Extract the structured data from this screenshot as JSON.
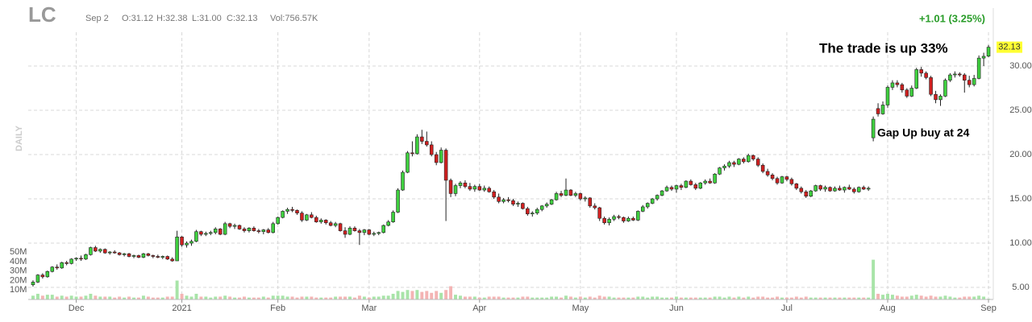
{
  "header": {
    "symbol": "LC",
    "date": "Sep 2",
    "open": "O:31.12",
    "high": "H:32.38",
    "low": "L:31.00",
    "close": "C:32.13",
    "volume": "Vol:756.57K",
    "change": "+1.01 (3.25%)",
    "period": "DAILY"
  },
  "chart_data": {
    "type": "candlestick",
    "annotations": [
      "The trade is up 33%",
      "Gap Up buy at 24"
    ],
    "up_color": "#3fcf3f",
    "down_color": "#d02020",
    "up_volume_color": "#a8e4a8",
    "down_volume_color": "#f4b4b4",
    "grid": true,
    "xlim": [
      -1,
      200
    ],
    "xticks": [
      {
        "value": 9,
        "label": "Dec"
      },
      {
        "value": 31,
        "label": "2021"
      },
      {
        "value": 51,
        "label": "Feb"
      },
      {
        "value": 70,
        "label": "Mar"
      },
      {
        "value": 93,
        "label": "Apr"
      },
      {
        "value": 114,
        "label": "May"
      },
      {
        "value": 134,
        "label": "Jun"
      },
      {
        "value": 157,
        "label": "Jul"
      },
      {
        "value": 178,
        "label": "Aug"
      },
      {
        "value": 199,
        "label": "Sep"
      }
    ],
    "ylim": [
      3.64,
      36.55
    ],
    "yticks": [
      {
        "value": 5,
        "label": "5.00"
      },
      {
        "value": 10,
        "label": "10.00"
      },
      {
        "value": 15,
        "label": "15.00"
      },
      {
        "value": 20,
        "label": "20.00"
      },
      {
        "value": 25,
        "label": "25.00"
      },
      {
        "value": 30,
        "label": "30.00"
      }
    ],
    "y2lim": [
      0,
      308
    ],
    "y2ticks": [
      {
        "value": 10,
        "label": "10M"
      },
      {
        "value": 20,
        "label": "20M"
      },
      {
        "value": 30,
        "label": "30M"
      },
      {
        "value": 40,
        "label": "40M"
      },
      {
        "value": 50,
        "label": "50M"
      }
    ],
    "ohlc": [
      [
        5.3,
        5.8,
        5.1,
        5.6,
        4
      ],
      [
        5.6,
        6.5,
        5.5,
        6.4,
        6
      ],
      [
        6.4,
        6.6,
        6.0,
        6.2,
        4
      ],
      [
        6.2,
        6.9,
        6.1,
        6.8,
        5
      ],
      [
        6.8,
        7.4,
        6.7,
        7.3,
        5
      ],
      [
        7.3,
        7.6,
        7.0,
        7.2,
        3
      ],
      [
        7.2,
        7.9,
        7.1,
        7.8,
        4
      ],
      [
        7.8,
        8.0,
        7.5,
        7.7,
        3
      ],
      [
        7.7,
        8.3,
        7.6,
        8.2,
        4
      ],
      [
        8.2,
        8.4,
        8.0,
        8.3,
        3
      ],
      [
        8.3,
        8.6,
        8.0,
        8.2,
        3
      ],
      [
        8.2,
        8.8,
        8.1,
        8.7,
        4
      ],
      [
        8.7,
        9.6,
        8.6,
        9.5,
        6
      ],
      [
        9.5,
        9.7,
        9.0,
        9.1,
        4
      ],
      [
        9.1,
        9.4,
        8.9,
        9.3,
        3
      ],
      [
        9.3,
        9.4,
        8.8,
        8.9,
        3
      ],
      [
        8.9,
        9.1,
        8.7,
        9.0,
        3
      ],
      [
        9.0,
        9.2,
        8.8,
        8.9,
        2
      ],
      [
        8.9,
        9.0,
        8.6,
        8.7,
        3
      ],
      [
        8.7,
        8.9,
        8.5,
        8.8,
        2
      ],
      [
        8.8,
        8.9,
        8.4,
        8.5,
        3
      ],
      [
        8.5,
        8.7,
        8.3,
        8.6,
        2
      ],
      [
        8.6,
        8.7,
        8.3,
        8.4,
        2
      ],
      [
        8.4,
        8.9,
        8.3,
        8.8,
        4
      ],
      [
        8.8,
        8.9,
        8.5,
        8.6,
        3
      ],
      [
        8.6,
        8.7,
        8.3,
        8.5,
        2
      ],
      [
        8.5,
        8.7,
        8.3,
        8.4,
        2
      ],
      [
        8.4,
        8.6,
        8.2,
        8.5,
        2
      ],
      [
        8.5,
        8.6,
        8.1,
        8.2,
        3
      ],
      [
        8.2,
        8.4,
        7.9,
        8.0,
        3
      ],
      [
        8.0,
        11.4,
        8.0,
        10.7,
        20
      ],
      [
        10.7,
        10.8,
        9.6,
        9.8,
        6
      ],
      [
        9.8,
        10.2,
        9.5,
        10.0,
        4
      ],
      [
        10.0,
        10.4,
        9.7,
        10.2,
        3
      ],
      [
        10.2,
        11.5,
        10.1,
        11.3,
        6
      ],
      [
        11.3,
        11.4,
        10.8,
        11.0,
        3
      ],
      [
        11.0,
        11.3,
        10.8,
        11.1,
        3
      ],
      [
        11.1,
        11.4,
        10.9,
        11.2,
        2
      ],
      [
        11.2,
        11.8,
        11.0,
        11.6,
        3
      ],
      [
        11.6,
        11.7,
        10.9,
        11.0,
        3
      ],
      [
        11.0,
        12.4,
        10.9,
        12.2,
        4
      ],
      [
        12.2,
        12.3,
        11.7,
        11.9,
        3
      ],
      [
        11.9,
        12.2,
        11.6,
        12.0,
        2
      ],
      [
        12.0,
        12.1,
        11.5,
        11.6,
        2
      ],
      [
        11.6,
        11.8,
        11.2,
        11.4,
        3
      ],
      [
        11.4,
        11.8,
        11.2,
        11.7,
        2
      ],
      [
        11.7,
        11.9,
        11.3,
        11.4,
        2
      ],
      [
        11.4,
        11.6,
        11.1,
        11.3,
        2
      ],
      [
        11.3,
        11.6,
        11.0,
        11.5,
        3
      ],
      [
        11.5,
        11.7,
        11.1,
        11.2,
        2
      ],
      [
        11.2,
        12.4,
        11.1,
        12.2,
        4
      ],
      [
        12.2,
        13.0,
        12.1,
        12.9,
        4
      ],
      [
        12.9,
        13.7,
        12.8,
        13.6,
        4
      ],
      [
        13.6,
        14.0,
        13.3,
        13.8,
        3
      ],
      [
        13.8,
        14.1,
        13.5,
        13.7,
        3
      ],
      [
        13.7,
        13.8,
        13.2,
        13.4,
        2
      ],
      [
        13.4,
        13.6,
        12.4,
        12.6,
        3
      ],
      [
        12.6,
        13.3,
        12.5,
        13.2,
        3
      ],
      [
        13.2,
        13.5,
        12.8,
        12.9,
        3
      ],
      [
        12.9,
        13.1,
        12.3,
        12.4,
        2
      ],
      [
        12.4,
        12.8,
        12.2,
        12.6,
        2
      ],
      [
        12.6,
        12.7,
        12.1,
        12.3,
        2
      ],
      [
        12.3,
        12.5,
        11.9,
        12.0,
        2
      ],
      [
        12.0,
        12.4,
        11.8,
        12.2,
        3
      ],
      [
        12.2,
        12.3,
        11.3,
        11.4,
        3
      ],
      [
        11.4,
        11.8,
        10.6,
        11.0,
        3
      ],
      [
        11.0,
        11.9,
        10.9,
        11.7,
        3
      ],
      [
        11.7,
        11.9,
        11.3,
        11.4,
        2
      ],
      [
        11.4,
        11.6,
        9.8,
        11.2,
        4
      ],
      [
        11.2,
        11.6,
        10.9,
        11.5,
        3
      ],
      [
        11.5,
        11.6,
        10.9,
        11.0,
        2
      ],
      [
        11.0,
        11.3,
        10.8,
        11.1,
        3
      ],
      [
        11.1,
        11.3,
        10.9,
        11.2,
        3
      ],
      [
        11.2,
        12.1,
        11.1,
        12.0,
        4
      ],
      [
        12.0,
        12.6,
        11.9,
        12.4,
        4
      ],
      [
        12.4,
        13.7,
        12.3,
        13.5,
        6
      ],
      [
        13.5,
        16.2,
        13.4,
        16.0,
        9
      ],
      [
        16.0,
        18.2,
        15.9,
        18.0,
        8
      ],
      [
        18.0,
        20.4,
        17.9,
        20.2,
        10
      ],
      [
        20.2,
        21.5,
        19.8,
        20.1,
        9
      ],
      [
        20.1,
        22.3,
        20.0,
        22.0,
        10
      ],
      [
        22.0,
        22.8,
        21.2,
        21.5,
        8
      ],
      [
        21.5,
        22.6,
        20.9,
        21.1,
        9
      ],
      [
        21.1,
        21.5,
        19.8,
        20.0,
        7
      ],
      [
        20.0,
        20.3,
        18.8,
        19.1,
        9
      ],
      [
        19.1,
        20.8,
        19.0,
        20.5,
        7
      ],
      [
        20.5,
        20.7,
        12.5,
        17.1,
        10
      ],
      [
        17.1,
        17.3,
        15.2,
        15.6,
        14
      ],
      [
        15.6,
        16.7,
        15.3,
        16.5,
        5
      ],
      [
        16.5,
        17.0,
        16.2,
        16.8,
        4
      ],
      [
        16.8,
        17.1,
        16.2,
        16.4,
        3
      ],
      [
        16.4,
        16.8,
        15.9,
        16.1,
        3
      ],
      [
        16.1,
        16.6,
        15.8,
        16.4,
        3
      ],
      [
        16.4,
        16.7,
        15.9,
        16.0,
        2
      ],
      [
        16.0,
        16.5,
        15.8,
        16.2,
        2
      ],
      [
        16.2,
        16.4,
        15.7,
        15.8,
        3
      ],
      [
        15.8,
        16.0,
        15.0,
        15.2,
        3
      ],
      [
        15.2,
        15.6,
        14.5,
        14.7,
        3
      ],
      [
        14.7,
        15.1,
        14.5,
        14.9,
        2
      ],
      [
        14.9,
        15.2,
        14.6,
        14.8,
        2
      ],
      [
        14.8,
        15.0,
        14.2,
        14.4,
        2
      ],
      [
        14.4,
        14.7,
        14.1,
        14.5,
        2
      ],
      [
        14.5,
        14.6,
        13.8,
        13.9,
        3
      ],
      [
        13.9,
        14.1,
        13.1,
        13.3,
        3
      ],
      [
        13.3,
        13.6,
        13.0,
        13.4,
        2
      ],
      [
        13.4,
        14.0,
        13.2,
        13.8,
        2
      ],
      [
        13.8,
        14.3,
        13.6,
        14.2,
        2
      ],
      [
        14.2,
        14.6,
        14.0,
        14.4,
        2
      ],
      [
        14.4,
        15.0,
        14.3,
        14.9,
        3
      ],
      [
        14.9,
        15.8,
        14.8,
        15.6,
        3
      ],
      [
        15.6,
        15.9,
        15.2,
        15.4,
        2
      ],
      [
        15.4,
        17.3,
        15.3,
        16.0,
        4
      ],
      [
        16.0,
        16.1,
        15.3,
        15.4,
        3
      ],
      [
        15.4,
        15.8,
        15.2,
        15.6,
        2
      ],
      [
        15.6,
        15.7,
        14.8,
        15.0,
        3
      ],
      [
        15.0,
        15.3,
        14.7,
        15.1,
        2
      ],
      [
        15.1,
        15.2,
        14.0,
        14.2,
        3
      ],
      [
        14.2,
        14.5,
        13.8,
        14.0,
        2
      ],
      [
        14.0,
        14.1,
        12.5,
        12.8,
        4
      ],
      [
        12.8,
        13.0,
        12.1,
        12.3,
        3
      ],
      [
        12.3,
        12.9,
        12.0,
        12.7,
        3
      ],
      [
        12.7,
        13.2,
        12.5,
        13.0,
        2
      ],
      [
        13.0,
        13.2,
        12.7,
        12.9,
        2
      ],
      [
        12.9,
        13.0,
        12.3,
        12.5,
        2
      ],
      [
        12.5,
        13.0,
        12.4,
        12.8,
        2
      ],
      [
        12.8,
        13.0,
        12.5,
        12.6,
        2
      ],
      [
        12.6,
        13.7,
        12.5,
        13.6,
        3
      ],
      [
        13.6,
        14.3,
        13.5,
        14.1,
        3
      ],
      [
        14.1,
        14.6,
        13.9,
        14.5,
        2
      ],
      [
        14.5,
        15.1,
        14.4,
        15.0,
        3
      ],
      [
        15.0,
        15.5,
        14.8,
        15.4,
        3
      ],
      [
        15.4,
        16.0,
        15.3,
        15.9,
        2
      ],
      [
        15.9,
        16.5,
        15.8,
        16.3,
        2
      ],
      [
        16.3,
        16.5,
        15.9,
        16.1,
        2
      ],
      [
        16.1,
        16.6,
        15.7,
        16.5,
        3
      ],
      [
        16.5,
        16.7,
        16.0,
        16.3,
        2
      ],
      [
        16.3,
        17.1,
        16.2,
        17.0,
        2
      ],
      [
        17.0,
        17.2,
        16.5,
        16.6,
        2
      ],
      [
        16.6,
        16.8,
        16.0,
        16.2,
        2
      ],
      [
        16.2,
        16.9,
        16.1,
        16.8,
        2
      ],
      [
        16.8,
        17.2,
        16.6,
        17.0,
        2
      ],
      [
        17.0,
        17.3,
        16.7,
        16.8,
        2
      ],
      [
        16.8,
        17.9,
        16.7,
        17.8,
        3
      ],
      [
        17.8,
        18.6,
        17.7,
        18.5,
        3
      ],
      [
        18.5,
        18.9,
        18.2,
        18.7,
        2
      ],
      [
        18.7,
        19.3,
        18.5,
        19.1,
        3
      ],
      [
        19.1,
        19.3,
        18.6,
        18.9,
        2
      ],
      [
        18.9,
        19.6,
        18.8,
        19.5,
        3
      ],
      [
        19.5,
        19.7,
        19.0,
        19.2,
        2
      ],
      [
        19.2,
        20.1,
        19.1,
        19.9,
        3
      ],
      [
        19.9,
        20.0,
        19.3,
        19.5,
        2
      ],
      [
        19.5,
        19.7,
        18.6,
        18.8,
        3
      ],
      [
        18.8,
        19.0,
        17.9,
        18.1,
        3
      ],
      [
        18.1,
        18.4,
        17.5,
        17.7,
        2
      ],
      [
        17.7,
        17.9,
        17.1,
        17.3,
        2
      ],
      [
        17.3,
        17.5,
        16.6,
        16.8,
        3
      ],
      [
        16.8,
        17.6,
        16.7,
        17.5,
        2
      ],
      [
        17.5,
        17.6,
        17.0,
        17.2,
        2
      ],
      [
        17.2,
        17.4,
        16.5,
        16.7,
        2
      ],
      [
        16.7,
        16.8,
        16.0,
        16.2,
        3
      ],
      [
        16.2,
        16.4,
        15.6,
        15.8,
        2
      ],
      [
        15.8,
        16.0,
        15.1,
        15.3,
        3
      ],
      [
        15.3,
        16.0,
        15.2,
        15.9,
        2
      ],
      [
        15.9,
        16.6,
        15.8,
        16.5,
        2
      ],
      [
        16.5,
        16.6,
        15.9,
        16.1,
        2
      ],
      [
        16.1,
        16.5,
        15.8,
        16.3,
        2
      ],
      [
        16.3,
        16.4,
        15.8,
        15.9,
        2
      ],
      [
        15.9,
        16.4,
        15.8,
        16.2,
        2
      ],
      [
        16.2,
        16.5,
        15.9,
        16.0,
        2
      ],
      [
        16.0,
        16.4,
        15.7,
        16.3,
        2
      ],
      [
        16.3,
        16.6,
        16.0,
        16.1,
        2
      ],
      [
        16.1,
        16.3,
        15.6,
        15.8,
        2
      ],
      [
        15.8,
        16.4,
        15.7,
        16.3,
        2
      ],
      [
        16.3,
        16.5,
        16.0,
        16.1,
        2
      ],
      [
        16.1,
        16.4,
        15.9,
        16.2,
        2
      ],
      [
        21.9,
        24.3,
        21.5,
        24.0,
        42
      ],
      [
        25.2,
        25.8,
        24.3,
        24.6,
        6
      ],
      [
        24.6,
        26.0,
        24.5,
        25.6,
        5
      ],
      [
        25.6,
        27.8,
        25.3,
        27.6,
        6
      ],
      [
        27.6,
        28.4,
        27.3,
        28.1,
        5
      ],
      [
        28.1,
        28.4,
        27.6,
        27.9,
        4
      ],
      [
        27.9,
        28.1,
        27.0,
        27.3,
        3
      ],
      [
        27.3,
        27.5,
        26.4,
        26.6,
        3
      ],
      [
        26.6,
        27.8,
        26.5,
        27.5,
        4
      ],
      [
        27.5,
        29.8,
        27.4,
        29.6,
        5
      ],
      [
        29.6,
        29.9,
        28.8,
        29.2,
        4
      ],
      [
        29.2,
        29.4,
        28.5,
        28.7,
        3
      ],
      [
        28.7,
        28.9,
        26.6,
        26.8,
        4
      ],
      [
        26.8,
        27.2,
        25.8,
        26.2,
        3
      ],
      [
        26.2,
        26.8,
        25.5,
        26.6,
        3
      ],
      [
        26.6,
        28.6,
        26.5,
        28.4,
        4
      ],
      [
        28.4,
        29.2,
        28.2,
        29.0,
        3
      ],
      [
        29.0,
        29.4,
        28.7,
        29.1,
        2
      ],
      [
        29.1,
        29.3,
        28.8,
        29.0,
        2
      ],
      [
        29.0,
        29.2,
        27.0,
        28.4,
        3
      ],
      [
        28.4,
        28.9,
        27.6,
        27.9,
        3
      ],
      [
        27.9,
        29.0,
        27.7,
        28.6,
        3
      ],
      [
        28.6,
        31.2,
        28.5,
        30.9,
        4
      ],
      [
        30.9,
        31.5,
        30.0,
        31.1,
        3
      ],
      [
        31.12,
        32.38,
        31.0,
        32.13,
        0.75657
      ]
    ]
  }
}
